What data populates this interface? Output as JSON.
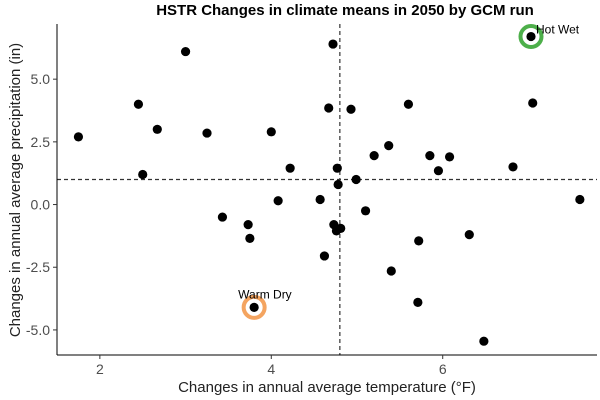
{
  "chart_data": {
    "type": "scatter",
    "title": "HSTR Changes in climate means in 2050 by GCM run",
    "xlabel": "Changes in annual average temperature (°F)",
    "ylabel": "Changes in annual average precipitation (in)",
    "xlim": [
      1.5,
      7.8
    ],
    "ylim": [
      -6.0,
      7.2
    ],
    "x_ticks": [
      2,
      4,
      6
    ],
    "x_tick_labels": [
      "2",
      "4",
      "6"
    ],
    "y_ticks": [
      -5.0,
      -2.5,
      0.0,
      2.5,
      5.0
    ],
    "y_tick_labels": [
      "-5.0",
      "-2.5",
      "0.0",
      "2.5",
      "5.0"
    ],
    "grid": false,
    "reference_lines": {
      "vertical_x": 4.8,
      "horizontal_y": 1.0,
      "style": "dashed"
    },
    "points": [
      {
        "x": 1.75,
        "y": 2.7
      },
      {
        "x": 2.45,
        "y": 4.0
      },
      {
        "x": 2.5,
        "y": 1.2
      },
      {
        "x": 2.67,
        "y": 3.0
      },
      {
        "x": 3.0,
        "y": 6.1
      },
      {
        "x": 3.25,
        "y": 2.85
      },
      {
        "x": 3.43,
        "y": -0.5
      },
      {
        "x": 3.73,
        "y": -0.8
      },
      {
        "x": 3.75,
        "y": -1.35
      },
      {
        "x": 3.8,
        "y": -4.1
      },
      {
        "x": 4.0,
        "y": 2.9
      },
      {
        "x": 4.08,
        "y": 0.15
      },
      {
        "x": 4.22,
        "y": 1.45
      },
      {
        "x": 4.57,
        "y": 0.2
      },
      {
        "x": 4.62,
        "y": -2.05
      },
      {
        "x": 4.67,
        "y": 3.85
      },
      {
        "x": 4.72,
        "y": 6.4
      },
      {
        "x": 4.73,
        "y": -0.8
      },
      {
        "x": 4.76,
        "y": -1.05
      },
      {
        "x": 4.77,
        "y": 1.45
      },
      {
        "x": 4.78,
        "y": 0.8
      },
      {
        "x": 4.81,
        "y": -0.95
      },
      {
        "x": 4.93,
        "y": 3.8
      },
      {
        "x": 4.99,
        "y": 1.0
      },
      {
        "x": 5.1,
        "y": -0.25
      },
      {
        "x": 5.2,
        "y": 1.95
      },
      {
        "x": 5.37,
        "y": 2.35
      },
      {
        "x": 5.4,
        "y": -2.65
      },
      {
        "x": 5.6,
        "y": 4.0
      },
      {
        "x": 5.71,
        "y": -3.9
      },
      {
        "x": 5.72,
        "y": -1.45
      },
      {
        "x": 5.85,
        "y": 1.95
      },
      {
        "x": 5.95,
        "y": 1.35
      },
      {
        "x": 6.08,
        "y": 1.9
      },
      {
        "x": 6.31,
        "y": -1.2
      },
      {
        "x": 6.48,
        "y": -5.45
      },
      {
        "x": 6.82,
        "y": 1.5
      },
      {
        "x": 7.03,
        "y": 6.7
      },
      {
        "x": 7.05,
        "y": 4.05
      },
      {
        "x": 7.6,
        "y": 0.2
      }
    ],
    "highlights": [
      {
        "label": "Hot Wet",
        "x": 7.03,
        "y": 6.7,
        "color": "#4daf4a"
      },
      {
        "label": "Warm Dry",
        "x": 3.8,
        "y": -4.1,
        "color": "#f4a460"
      }
    ]
  }
}
